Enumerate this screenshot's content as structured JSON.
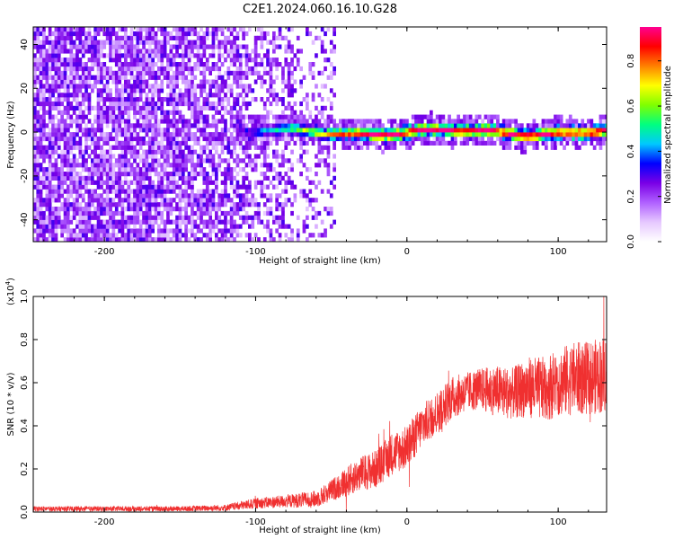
{
  "title": "C2E1.2024.060.16.10.G28",
  "chart_data": [
    {
      "type": "heatmap",
      "title": "C2E1.2024.060.16.10.G28",
      "xlabel": "Height of straight line (km)",
      "ylabel": "Frequency (Hz)",
      "xlim": [
        -247,
        132
      ],
      "ylim": [
        -50,
        48
      ],
      "x_ticks": [
        -200,
        -100,
        0,
        100
      ],
      "x_tick_labels": [
        "-200",
        "-100",
        "0",
        "100"
      ],
      "y_ticks": [
        -40,
        -20,
        0,
        20,
        40
      ],
      "y_tick_labels": [
        "-40",
        "-20",
        "0",
        "20",
        "40"
      ],
      "colorbar": {
        "label": "Normalized spectral amplitude",
        "range": [
          0,
          0.95
        ],
        "ticks": [
          0.0,
          0.2,
          0.4,
          0.6,
          0.8
        ],
        "tick_labels": [
          "0.0",
          "0.2",
          "0.4",
          "0.6",
          "0.8"
        ],
        "colors": [
          "#ffffff",
          "#e6c8ff",
          "#b060ff",
          "#7a00e6",
          "#0000ff",
          "#00c8ff",
          "#00ff80",
          "#80ff00",
          "#ffff00",
          "#ff8000",
          "#ff0000",
          "#ff0090"
        ]
      },
      "description_values": {
        "noise_region_x": [
          -247,
          -50
        ],
        "signal_band_x": [
          -110,
          132
        ],
        "signal_band_center_hz": 0,
        "signal_band_halfwidth_hz": 4
      }
    },
    {
      "type": "line",
      "xlabel": "Height of straight line (km)",
      "ylabel": "SNR (10 * v/v)",
      "y_multiplier_label": "(x10",
      "y_multiplier_exp": "4",
      "y_multiplier_close": ")",
      "xlim": [
        -247,
        132
      ],
      "ylim": [
        0,
        1.0
      ],
      "x_ticks": [
        -200,
        -100,
        0,
        100
      ],
      "x_tick_labels": [
        "-200",
        "-100",
        "0",
        "100"
      ],
      "y_ticks": [
        0.0,
        0.2,
        0.4,
        0.6,
        0.8,
        1.0
      ],
      "y_tick_labels": [
        "0.0",
        "0.2",
        "0.4",
        "0.6",
        "0.8",
        "1.0"
      ],
      "series": [
        {
          "name": "SNR",
          "color": "#f03030",
          "envelope_x": [
            -247,
            -150,
            -120,
            -100,
            -80,
            -60,
            -50,
            -40,
            -30,
            -20,
            -10,
            0,
            10,
            20,
            30,
            40,
            50,
            60,
            70,
            80,
            90,
            100,
            110,
            120,
            132
          ],
          "envelope_mean": [
            0.015,
            0.015,
            0.02,
            0.04,
            0.05,
            0.06,
            0.1,
            0.14,
            0.18,
            0.2,
            0.27,
            0.3,
            0.4,
            0.46,
            0.53,
            0.56,
            0.57,
            0.56,
            0.55,
            0.58,
            0.57,
            0.6,
            0.62,
            0.62,
            0.64
          ],
          "envelope_spread": [
            0.012,
            0.012,
            0.015,
            0.025,
            0.03,
            0.04,
            0.05,
            0.07,
            0.08,
            0.09,
            0.1,
            0.1,
            0.1,
            0.1,
            0.1,
            0.09,
            0.1,
            0.12,
            0.12,
            0.14,
            0.15,
            0.16,
            0.17,
            0.17,
            0.18
          ]
        }
      ]
    }
  ]
}
